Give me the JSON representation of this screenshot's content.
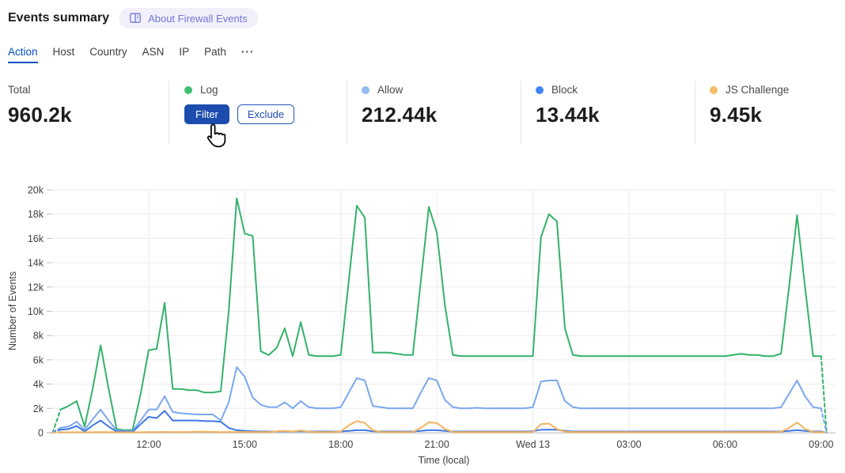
{
  "header": {
    "title": "Events summary",
    "about_badge_label": "About Firewall Events"
  },
  "tabs": {
    "items": [
      {
        "label": "Action",
        "active": true
      },
      {
        "label": "Host"
      },
      {
        "label": "Country"
      },
      {
        "label": "ASN"
      },
      {
        "label": "IP"
      },
      {
        "label": "Path"
      }
    ],
    "more_label": "···"
  },
  "stats": {
    "total": {
      "label": "Total",
      "value": "960.2k"
    },
    "log": {
      "label": "Log",
      "dot_color": "#3dc06e",
      "filter_button": "Filter",
      "exclude_button": "Exclude"
    },
    "allow": {
      "label": "Allow",
      "value": "212.44k",
      "dot_color": "#92bbf4"
    },
    "block": {
      "label": "Block",
      "value": "13.44k",
      "dot_color": "#4285f4"
    },
    "js_challenge": {
      "label": "JS Challenge",
      "value": "9.45k",
      "dot_color": "#f4bd66"
    }
  },
  "colors": {
    "accent_blue": "#0051c3",
    "filter_button_bg": "#1c4dae",
    "badge_text": "#7277d6",
    "badge_bg": "#f1f0fa"
  },
  "chart_data": {
    "type": "line",
    "xlabel": "Time (local)",
    "ylabel": "Number of Events",
    "values_unit": "thousands of events",
    "time_axis_note": "points every 15 min from 09:00 Tue to 09:00 Wed; first and last segments dashed (partial buckets)",
    "points_per_hour": 4,
    "n_regular": 97,
    "tail_t": 24.17,
    "ylim": [
      0,
      20
    ],
    "grid": true,
    "y_axis": {
      "label": "Number of Events",
      "ticks": [
        0,
        2,
        4,
        6,
        8,
        10,
        12,
        14,
        16,
        18,
        20
      ],
      "tick_labels": [
        "0",
        "2k",
        "4k",
        "6k",
        "8k",
        "10k",
        "12k",
        "14k",
        "16k",
        "18k",
        "20k"
      ]
    },
    "x_axis": {
      "label": "Time (local)",
      "tick_hours": [
        3,
        6,
        9,
        12,
        15,
        18,
        21,
        24
      ],
      "tick_labels": [
        "12:00",
        "15:00",
        "18:00",
        "21:00",
        "Wed 13",
        "03:00",
        "06:00",
        "09:00"
      ]
    },
    "series": [
      {
        "name": "Log",
        "color": "#34b269",
        "values": [
          0,
          1.9,
          2.2,
          2.6,
          0.5,
          3.6,
          7.2,
          3.6,
          0.3,
          0.2,
          0.25,
          3.2,
          6.8,
          6.9,
          10.7,
          3.6,
          3.6,
          3.5,
          3.5,
          3.3,
          3.3,
          3.4,
          10,
          19.3,
          16.4,
          16.2,
          6.7,
          6.4,
          7,
          8.6,
          6.3,
          9.1,
          6.4,
          6.3,
          6.3,
          6.3,
          6.4,
          12.5,
          18.7,
          17.7,
          6.6,
          6.6,
          6.6,
          6.5,
          6.4,
          6.4,
          12.5,
          18.6,
          16.5,
          10.5,
          6.4,
          6.3,
          6.3,
          6.3,
          6.3,
          6.3,
          6.3,
          6.3,
          6.3,
          6.3,
          6.3,
          16.1,
          18,
          17.4,
          8.6,
          6.4,
          6.3,
          6.3,
          6.3,
          6.3,
          6.3,
          6.3,
          6.3,
          6.3,
          6.3,
          6.3,
          6.3,
          6.3,
          6.3,
          6.3,
          6.3,
          6.3,
          6.3,
          6.3,
          6.3,
          6.4,
          6.5,
          6.4,
          6.4,
          6.3,
          6.3,
          6.5,
          12,
          17.9,
          12,
          6.3,
          6.3,
          0
        ]
      },
      {
        "name": "Allow",
        "color": "#7aa7f0",
        "values": [
          0.05,
          0.4,
          0.5,
          0.9,
          0.25,
          1.1,
          1.9,
          1,
          0.2,
          0.15,
          0.15,
          1,
          1.9,
          1.9,
          3,
          1.7,
          1.6,
          1.55,
          1.5,
          1.5,
          1.5,
          1,
          2.5,
          5.4,
          4.6,
          2.9,
          2.3,
          2.1,
          2.1,
          2.5,
          2,
          2.6,
          2.1,
          2,
          2,
          2,
          2.1,
          3.3,
          4.5,
          4.3,
          2.2,
          2.1,
          2,
          2,
          2,
          2,
          3.3,
          4.5,
          4.3,
          2.7,
          2.1,
          2,
          2,
          2.05,
          2,
          2,
          2,
          2,
          2,
          2,
          2.1,
          4.2,
          4.3,
          4.3,
          2.6,
          2.1,
          2,
          2,
          2,
          2,
          2,
          2,
          2,
          2,
          2,
          2,
          2,
          2,
          2,
          2,
          2,
          2,
          2,
          2,
          2,
          2,
          2,
          2,
          2,
          2,
          2,
          2.1,
          3.2,
          4.3,
          3,
          2.1,
          2,
          0
        ]
      },
      {
        "name": "Block",
        "color": "#3d77e3",
        "values": [
          0.02,
          0.25,
          0.3,
          0.55,
          0.1,
          0.6,
          1,
          0.5,
          0.1,
          0.08,
          0.08,
          0.7,
          1.3,
          1.2,
          1.8,
          1,
          1,
          1,
          1,
          0.95,
          0.95,
          0.9,
          0.4,
          0.2,
          0.15,
          0.12,
          0.1,
          0.1,
          0.1,
          0.12,
          0.1,
          0.12,
          0.1,
          0.1,
          0.1,
          0.1,
          0.1,
          0.15,
          0.2,
          0.2,
          0.12,
          0.1,
          0.1,
          0.1,
          0.1,
          0.1,
          0.15,
          0.2,
          0.2,
          0.15,
          0.1,
          0.1,
          0.1,
          0.1,
          0.1,
          0.1,
          0.1,
          0.1,
          0.1,
          0.1,
          0.12,
          0.25,
          0.25,
          0.25,
          0.15,
          0.1,
          0.1,
          0.1,
          0.1,
          0.1,
          0.1,
          0.1,
          0.1,
          0.1,
          0.1,
          0.1,
          0.1,
          0.1,
          0.1,
          0.1,
          0.1,
          0.1,
          0.1,
          0.1,
          0.1,
          0.1,
          0.1,
          0.1,
          0.1,
          0.1,
          0.1,
          0.1,
          0.15,
          0.2,
          0.15,
          0.1,
          0.1,
          0
        ]
      },
      {
        "name": "JS Challenge",
        "color": "#f2b45c",
        "values": [
          0.02,
          0.03,
          0.03,
          0.04,
          0.03,
          0.04,
          0.05,
          0.04,
          0.03,
          0.03,
          0.03,
          0.04,
          0.05,
          0.05,
          0.06,
          0.05,
          0.05,
          0.05,
          0.08,
          0.08,
          0.06,
          0.05,
          0.05,
          0.06,
          0.06,
          0.05,
          0.05,
          0.05,
          0.12,
          0.15,
          0.1,
          0.18,
          0.08,
          0.05,
          0.05,
          0.05,
          0.1,
          0.6,
          0.95,
          0.8,
          0.2,
          0.06,
          0.05,
          0.05,
          0.05,
          0.05,
          0.4,
          0.85,
          0.8,
          0.3,
          0.06,
          0.05,
          0.05,
          0.05,
          0.05,
          0.05,
          0.05,
          0.05,
          0.05,
          0.05,
          0.06,
          0.7,
          0.75,
          0.3,
          0.08,
          0.05,
          0.05,
          0.05,
          0.05,
          0.05,
          0.05,
          0.05,
          0.05,
          0.05,
          0.05,
          0.05,
          0.05,
          0.05,
          0.05,
          0.05,
          0.05,
          0.05,
          0.05,
          0.05,
          0.05,
          0.05,
          0.05,
          0.05,
          0.05,
          0.05,
          0.05,
          0.07,
          0.4,
          0.85,
          0.3,
          0.06,
          0.05,
          0
        ]
      }
    ]
  }
}
